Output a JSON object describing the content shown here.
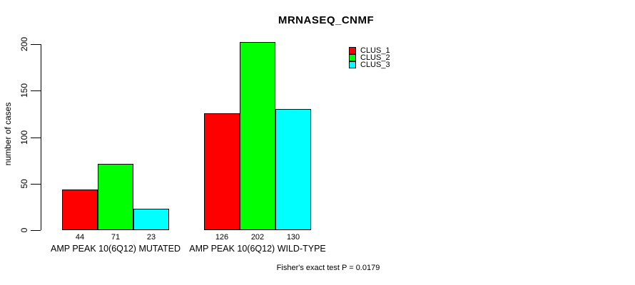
{
  "chart_data": {
    "type": "bar",
    "title": "MRNASEQ_CNMF",
    "xlabel": "",
    "ylabel": "number of cases",
    "categories": [
      "AMP PEAK 10(6Q12) MUTATED",
      "AMP PEAK 10(6Q12) WILD-TYPE"
    ],
    "series": [
      {
        "name": "CLUS_1",
        "color": "#FF0000",
        "values": [
          44,
          126
        ]
      },
      {
        "name": "CLUS_2",
        "color": "#00FF00",
        "values": [
          71,
          202
        ]
      },
      {
        "name": "CLUS_3",
        "color": "#00FFFF",
        "values": [
          23,
          130
        ]
      }
    ],
    "bar_value_labels": [
      [
        44,
        71,
        23
      ],
      [
        126,
        202,
        130
      ]
    ],
    "ylim": [
      0,
      200
    ],
    "yticks": [
      0,
      50,
      100,
      150,
      200
    ],
    "grid": false,
    "legend_position": "top-right-inside",
    "annotation": "Fisher's exact test P = 0.0179"
  },
  "legend": {
    "items": [
      {
        "label": "CLUS_1",
        "color": "#FF0000"
      },
      {
        "label": "CLUS_2",
        "color": "#00FF00"
      },
      {
        "label": "CLUS_3",
        "color": "#00FFFF"
      }
    ]
  },
  "colors": {
    "background": "#FFFFFF",
    "axis": "#000000",
    "bar_border": "#000000"
  }
}
